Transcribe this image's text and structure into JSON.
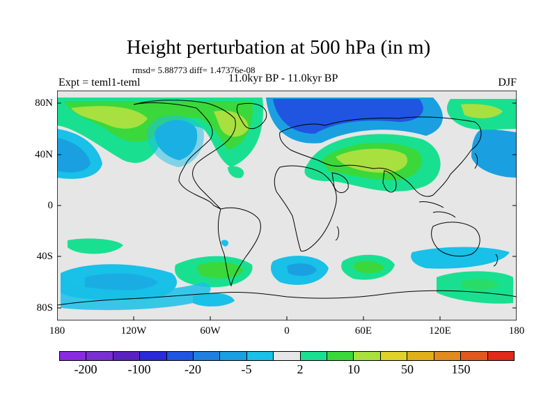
{
  "title": "Height perturbation at 500 hPa (in m)",
  "stats": "rmsd= 5.88773 diff= 1.47376e-08",
  "experiment": "Expt = teml1-teml",
  "period": "11.0kyr BP - 11.0kyr BP",
  "season": "DJF",
  "lat_labels": [
    "80N",
    "40N",
    "0",
    "40S",
    "80S"
  ],
  "lon_labels": [
    "180",
    "120W",
    "60W",
    "0",
    "60E",
    "120E",
    "180"
  ],
  "colorbar": {
    "colors": [
      "#8a2be2",
      "#7a2fd0",
      "#5a23c0",
      "#2a2ad8",
      "#1f55e0",
      "#1f80e0",
      "#1aa0e0",
      "#19c0e8",
      "#e6e6e6",
      "#19e090",
      "#3ad83a",
      "#a8e040",
      "#dfd22a",
      "#e0b01a",
      "#e08a20",
      "#e05a20",
      "#e02a1a"
    ],
    "labels": [
      "-200",
      "-100",
      "-20",
      "-5",
      "2",
      "10",
      "50",
      "150"
    ]
  },
  "field_colors": {
    "background": "#e6e6e6",
    "neg_weak": "#19c0e8",
    "neg_mid": "#1aa0e0",
    "neg_strong": "#1f55e0",
    "pos_weak": "#19e090",
    "pos_mid": "#3ad83a",
    "pos_strong": "#a8e040",
    "pos_peak": "#dfd22a"
  }
}
